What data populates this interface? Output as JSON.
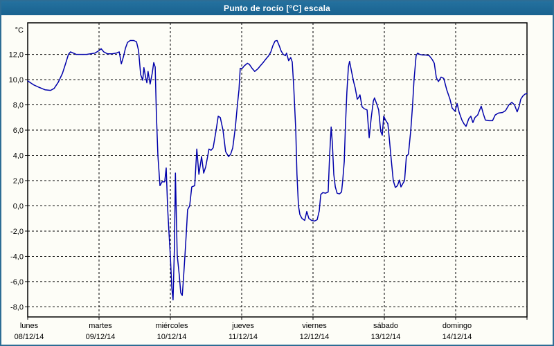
{
  "window": {
    "title": "Punto de rocío [°C] escala"
  },
  "colors": {
    "frame": "#2d6d95",
    "titlebar": "#1d6894",
    "titlebar_text": "#ffffff",
    "background": "#fdfdf7",
    "plot_border": "#000000",
    "grid": "#000000",
    "label": "#000000",
    "line": "#0000aa"
  },
  "chart_data": {
    "type": "line",
    "title": "Punto de rocío [°C] escala",
    "unit_label": "°C",
    "grid": "dashed",
    "legend": "none",
    "ylim": [
      -8.8,
      14.5
    ],
    "xlim_hours": [
      0,
      168
    ],
    "y_ticks": [
      {
        "value": 12,
        "label": "12,0"
      },
      {
        "value": 10,
        "label": "10,0"
      },
      {
        "value": 8,
        "label": "8,0"
      },
      {
        "value": 6,
        "label": "6,0"
      },
      {
        "value": 4,
        "label": "4,0"
      },
      {
        "value": 2,
        "label": "2,0"
      },
      {
        "value": 0,
        "label": "0,0"
      },
      {
        "value": -2,
        "label": "-2,0"
      },
      {
        "value": -4,
        "label": "-4,0"
      },
      {
        "value": -6,
        "label": "-6,0"
      },
      {
        "value": -8,
        "label": "-8,0"
      }
    ],
    "x_days": [
      {
        "name": "lunes",
        "date": "08/12/14",
        "hour": 0
      },
      {
        "name": "martes",
        "date": "09/12/14",
        "hour": 24
      },
      {
        "name": "miércoles",
        "date": "10/12/14",
        "hour": 48
      },
      {
        "name": "jueves",
        "date": "11/12/14",
        "hour": 72
      },
      {
        "name": "viernes",
        "date": "12/12/14",
        "hour": 96
      },
      {
        "name": "sábado",
        "date": "13/12/14",
        "hour": 120
      },
      {
        "name": "domingo",
        "date": "14/12/14",
        "hour": 144
      }
    ],
    "series": [
      {
        "name": "Punto de rocío",
        "color": "#0000aa",
        "points": [
          [
            0,
            9.9
          ],
          [
            1.9,
            9.6
          ],
          [
            3.7,
            9.4
          ],
          [
            5.8,
            9.2
          ],
          [
            7.7,
            9.15
          ],
          [
            8.9,
            9.3
          ],
          [
            10.3,
            9.8
          ],
          [
            11.7,
            10.5
          ],
          [
            12.8,
            11.3
          ],
          [
            13.7,
            12.0
          ],
          [
            14.4,
            12.2
          ],
          [
            15.4,
            12.1
          ],
          [
            16.3,
            12.0
          ],
          [
            18.2,
            12.0
          ],
          [
            19.8,
            12.0
          ],
          [
            21.2,
            12.05
          ],
          [
            22.6,
            12.1
          ],
          [
            24,
            12.3
          ],
          [
            24.7,
            12.45
          ],
          [
            25.6,
            12.2
          ],
          [
            26.8,
            12.05
          ],
          [
            28.4,
            12.05
          ],
          [
            29.8,
            12.1
          ],
          [
            30.8,
            12.2
          ],
          [
            31.5,
            11.25
          ],
          [
            32.2,
            11.8
          ],
          [
            32.9,
            12.5
          ],
          [
            33.6,
            12.95
          ],
          [
            34.5,
            13.1
          ],
          [
            35.7,
            13.1
          ],
          [
            36.6,
            13.0
          ],
          [
            37.3,
            12.3
          ],
          [
            38,
            10.4
          ],
          [
            38.7,
            9.95
          ],
          [
            39.1,
            10.95
          ],
          [
            39.6,
            10.3
          ],
          [
            40.1,
            9.75
          ],
          [
            40.5,
            10.65
          ],
          [
            41.2,
            9.65
          ],
          [
            41.9,
            10.5
          ],
          [
            42.4,
            11.35
          ],
          [
            42.9,
            11.0
          ],
          [
            43.3,
            7.3
          ],
          [
            43.8,
            4.0
          ],
          [
            44.5,
            1.6
          ],
          [
            45.2,
            1.9
          ],
          [
            46.1,
            1.9
          ],
          [
            46.6,
            3.0
          ],
          [
            47.1,
            -0.2
          ],
          [
            47.5,
            -2.0
          ],
          [
            48,
            -4.0
          ],
          [
            48.5,
            -6.5
          ],
          [
            48.9,
            -7.45
          ],
          [
            49.4,
            -3.0
          ],
          [
            49.7,
            2.6
          ],
          [
            50.3,
            -3.9
          ],
          [
            51,
            -5.5
          ],
          [
            51.5,
            -6.9
          ],
          [
            52,
            -7.1
          ],
          [
            52.4,
            -5.8
          ],
          [
            52.9,
            -4.0
          ],
          [
            53.4,
            -2.0
          ],
          [
            53.8,
            -0.3
          ],
          [
            54.5,
            0.0
          ],
          [
            55.2,
            1.5
          ],
          [
            56.2,
            1.6
          ],
          [
            56.9,
            4.5
          ],
          [
            57.6,
            2.5
          ],
          [
            58.5,
            3.9
          ],
          [
            59.2,
            2.6
          ],
          [
            59.9,
            3.1
          ],
          [
            61,
            4.5
          ],
          [
            61.7,
            4.4
          ],
          [
            62.4,
            4.6
          ],
          [
            63.4,
            6.0
          ],
          [
            64.1,
            7.1
          ],
          [
            64.8,
            7.0
          ],
          [
            65.7,
            6.0
          ],
          [
            66.6,
            4.3
          ],
          [
            67.6,
            3.9
          ],
          [
            68.3,
            4.1
          ],
          [
            69,
            4.6
          ],
          [
            69.9,
            6.3
          ],
          [
            70.6,
            8.1
          ],
          [
            71.1,
            9.2
          ],
          [
            71.5,
            10.9
          ],
          [
            72.2,
            10.9
          ],
          [
            72.9,
            11.1
          ],
          [
            73.9,
            11.3
          ],
          [
            74.6,
            11.2
          ],
          [
            75.5,
            10.9
          ],
          [
            76.4,
            10.65
          ],
          [
            77.4,
            10.85
          ],
          [
            78.3,
            11.1
          ],
          [
            79.2,
            11.35
          ],
          [
            80.2,
            11.65
          ],
          [
            81.1,
            11.9
          ],
          [
            81.8,
            12.2
          ],
          [
            82.5,
            12.7
          ],
          [
            83.2,
            13.05
          ],
          [
            83.9,
            13.1
          ],
          [
            84.6,
            12.7
          ],
          [
            85.3,
            12.25
          ],
          [
            86,
            12.0
          ],
          [
            86.7,
            11.9
          ],
          [
            87.1,
            12.1
          ],
          [
            87.8,
            11.5
          ],
          [
            88.5,
            11.75
          ],
          [
            89,
            11.4
          ],
          [
            89.5,
            9.5
          ],
          [
            90.2,
            6.0
          ],
          [
            90.6,
            2.5
          ],
          [
            91.1,
            0.0
          ],
          [
            91.6,
            -0.7
          ],
          [
            92.3,
            -1.0
          ],
          [
            93.2,
            -1.15
          ],
          [
            93.9,
            -0.45
          ],
          [
            94.6,
            -1.0
          ],
          [
            95.5,
            -1.15
          ],
          [
            96.5,
            -1.2
          ],
          [
            97.4,
            -1.1
          ],
          [
            98.1,
            -0.4
          ],
          [
            98.6,
            0.9
          ],
          [
            99.3,
            1.05
          ],
          [
            100.2,
            1.0
          ],
          [
            101.1,
            1.1
          ],
          [
            101.6,
            4.0
          ],
          [
            102.1,
            6.25
          ],
          [
            102.5,
            5.0
          ],
          [
            103,
            2.5
          ],
          [
            103.5,
            1.5
          ],
          [
            104.1,
            1.0
          ],
          [
            104.9,
            0.95
          ],
          [
            105.6,
            1.1
          ],
          [
            106,
            2.0
          ],
          [
            106.5,
            3.5
          ],
          [
            106.9,
            6.3
          ],
          [
            107.4,
            9.0
          ],
          [
            107.9,
            11.0
          ],
          [
            108.3,
            11.45
          ],
          [
            109,
            10.6
          ],
          [
            109.7,
            9.8
          ],
          [
            110.2,
            9.35
          ],
          [
            110.9,
            8.45
          ],
          [
            111.4,
            8.6
          ],
          [
            111.8,
            8.8
          ],
          [
            112.5,
            7.85
          ],
          [
            113.2,
            7.7
          ],
          [
            114.2,
            7.6
          ],
          [
            114.9,
            5.4
          ],
          [
            115.6,
            7.0
          ],
          [
            116.3,
            8.3
          ],
          [
            116.7,
            8.55
          ],
          [
            117.4,
            8.1
          ],
          [
            118.1,
            7.6
          ],
          [
            118.8,
            5.9
          ],
          [
            119.3,
            5.6
          ],
          [
            119.8,
            7.1
          ],
          [
            120.4,
            6.8
          ],
          [
            121.2,
            6.5
          ],
          [
            121.6,
            5.5
          ],
          [
            122.3,
            3.7
          ],
          [
            123,
            2.0
          ],
          [
            123.7,
            1.45
          ],
          [
            124.4,
            1.6
          ],
          [
            125.1,
            2.05
          ],
          [
            125.6,
            1.5
          ],
          [
            126.3,
            1.8
          ],
          [
            126.8,
            2.0
          ],
          [
            127.4,
            3.9
          ],
          [
            128.1,
            4.1
          ],
          [
            128.9,
            6.0
          ],
          [
            129.5,
            8.0
          ],
          [
            130,
            10.0
          ],
          [
            130.7,
            11.9
          ],
          [
            131.2,
            12.1
          ],
          [
            131.9,
            12.0
          ],
          [
            132.8,
            11.95
          ],
          [
            134,
            11.95
          ],
          [
            135.1,
            11.9
          ],
          [
            136.1,
            11.6
          ],
          [
            136.8,
            11.3
          ],
          [
            137.5,
            10.15
          ],
          [
            138.2,
            9.85
          ],
          [
            139.1,
            10.2
          ],
          [
            140,
            10.1
          ],
          [
            141,
            9.2
          ],
          [
            142.1,
            8.45
          ],
          [
            142.8,
            7.75
          ],
          [
            143.8,
            7.5
          ],
          [
            144.5,
            8.1
          ],
          [
            145.2,
            7.4
          ],
          [
            146.1,
            6.8
          ],
          [
            146.8,
            6.5
          ],
          [
            147.5,
            6.3
          ],
          [
            148.4,
            6.9
          ],
          [
            149.1,
            7.1
          ],
          [
            149.8,
            6.6
          ],
          [
            150.5,
            7.0
          ],
          [
            151.4,
            7.2
          ],
          [
            152.6,
            7.9
          ],
          [
            153.3,
            7.3
          ],
          [
            154,
            6.8
          ],
          [
            155.2,
            6.75
          ],
          [
            156.4,
            6.75
          ],
          [
            157.3,
            7.2
          ],
          [
            158.4,
            7.35
          ],
          [
            159.8,
            7.4
          ],
          [
            160.8,
            7.55
          ],
          [
            161.9,
            8.0
          ],
          [
            162.9,
            8.2
          ],
          [
            163.8,
            8.0
          ],
          [
            164.7,
            7.45
          ],
          [
            165.4,
            7.9
          ],
          [
            165.9,
            8.45
          ],
          [
            166.6,
            8.7
          ],
          [
            167.3,
            8.85
          ],
          [
            168,
            8.9
          ]
        ]
      }
    ]
  }
}
